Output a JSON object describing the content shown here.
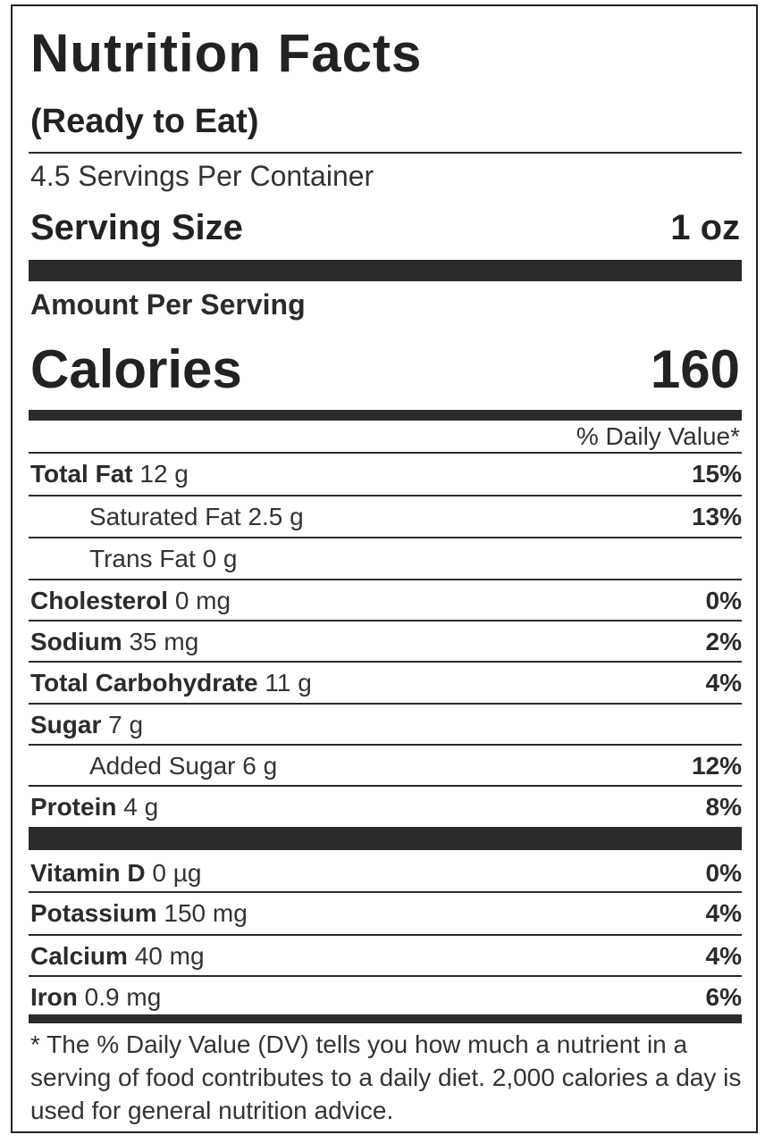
{
  "title": "Nutrition Facts",
  "subtitle": "(Ready to Eat)",
  "servings_per_container": "4.5 Servings Per Container",
  "serving_size": {
    "label": "Serving Size",
    "value": "1 oz"
  },
  "amount_per_serving": "Amount Per Serving",
  "calories": {
    "label": "Calories",
    "value": "160"
  },
  "daily_value_header": "% Daily Value*",
  "nutrients": [
    {
      "name": "Total Fat",
      "amount": "12 g",
      "dv": "15%"
    },
    {
      "name": "Saturated Fat",
      "amount": "2.5 g",
      "dv": "13%"
    },
    {
      "name": "Trans Fat",
      "amount": "0 g",
      "dv": ""
    },
    {
      "name": "Cholesterol",
      "amount": "0 mg",
      "dv": "0%"
    },
    {
      "name": "Sodium",
      "amount": "35 mg",
      "dv": "2%"
    },
    {
      "name": "Total Carbohydrate",
      "amount": "11 g",
      "dv": "4%"
    },
    {
      "name": "Sugar",
      "amount": "7 g",
      "dv": ""
    },
    {
      "name": "Added Sugar",
      "amount": "6 g",
      "dv": "12%"
    },
    {
      "name": "Protein",
      "amount": "4 g",
      "dv": "8%"
    }
  ],
  "vitamins": [
    {
      "name": "Vitamin D",
      "amount": "0 µg",
      "dv": "0%"
    },
    {
      "name": "Potassium",
      "amount": "150 mg",
      "dv": "4%"
    },
    {
      "name": "Calcium",
      "amount": "40 mg",
      "dv": "4%"
    },
    {
      "name": "Iron",
      "amount": "0.9 mg",
      "dv": "6%"
    }
  ],
  "footnote": "* The % Daily Value (DV) tells you how much a nutrient in a serving of food contributes to a daily diet. 2,000 calories a day is used for general nutrition advice."
}
